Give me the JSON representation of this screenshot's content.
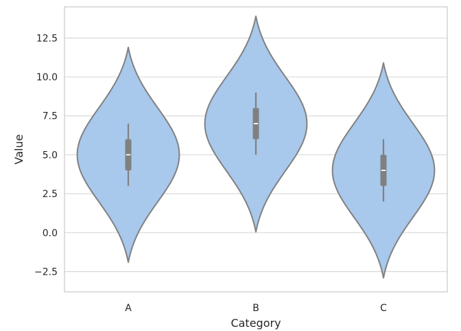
{
  "chart_data": {
    "type": "violin",
    "xlabel": "Category",
    "ylabel": "Value",
    "categories": [
      "A",
      "B",
      "C"
    ],
    "ylim": [
      -3.8,
      14.5
    ],
    "yticks": [
      -2.5,
      0.0,
      2.5,
      5.0,
      7.5,
      10.0,
      12.5
    ],
    "ytick_labels": [
      "−2.5",
      "0.0",
      "2.5",
      "5.0",
      "7.5",
      "10.0",
      "12.5"
    ],
    "grid": true,
    "colors": {
      "fill": "#a8c8ec",
      "outline": "#808080",
      "grid": "#d9d9d9",
      "median": "#ffffff"
    },
    "violins": [
      {
        "category": "A",
        "min": -1.9,
        "max": 11.9,
        "center": 5.0,
        "max_half_width": 0.4,
        "box": {
          "q1": 4.0,
          "median": 5.0,
          "q3": 6.0,
          "whisker_low": 3.0,
          "whisker_high": 7.0
        }
      },
      {
        "category": "B",
        "min": 0.05,
        "max": 13.9,
        "center": 7.0,
        "max_half_width": 0.4,
        "box": {
          "q1": 6.0,
          "median": 7.0,
          "q3": 8.0,
          "whisker_low": 5.0,
          "whisker_high": 9.0
        }
      },
      {
        "category": "C",
        "min": -2.9,
        "max": 10.9,
        "center": 4.0,
        "max_half_width": 0.4,
        "box": {
          "q1": 3.0,
          "median": 4.0,
          "q3": 5.0,
          "whisker_low": 2.0,
          "whisker_high": 6.0
        }
      }
    ]
  }
}
